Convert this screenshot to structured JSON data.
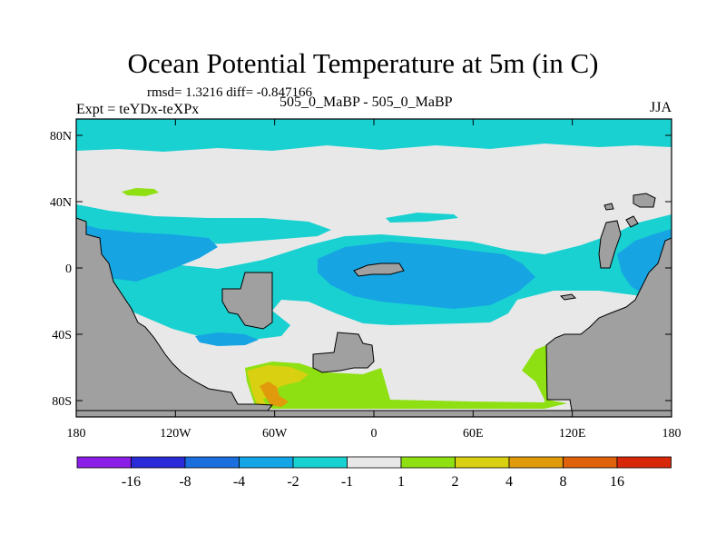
{
  "title": "Ocean Potential Temperature at 5m (in C)",
  "stats": "rmsd= 1.3216 diff= -0.847166",
  "experiment": "Expt = teYDx-teXPx",
  "case_label": "505_0_MaBP - 505_0_MaBP",
  "season": "JJA",
  "y_ticks": [
    "80N",
    "40N",
    "0",
    "40S",
    "80S"
  ],
  "x_ticks": [
    "180",
    "120W",
    "60W",
    "0",
    "60E",
    "120E",
    "180"
  ],
  "colorbar": {
    "labels": [
      "-16",
      "-8",
      "-4",
      "-2",
      "-1",
      "1",
      "2",
      "4",
      "8",
      "16"
    ],
    "colors": [
      "#8a1ee6",
      "#2a2ad8",
      "#1a6ede",
      "#12a6e6",
      "#18d2d2",
      "#e8e8e8",
      "#8ee012",
      "#d8d010",
      "#e09a0c",
      "#e0620c",
      "#d8280a"
    ]
  },
  "colors": {
    "land": "#a0a0a0",
    "cyan": "#19d1d1",
    "blue": "#16a4e3",
    "neutral": "#e8e8e8",
    "green": "#8ee012",
    "yellow": "#d8d010",
    "orange": "#e09a0c"
  }
}
